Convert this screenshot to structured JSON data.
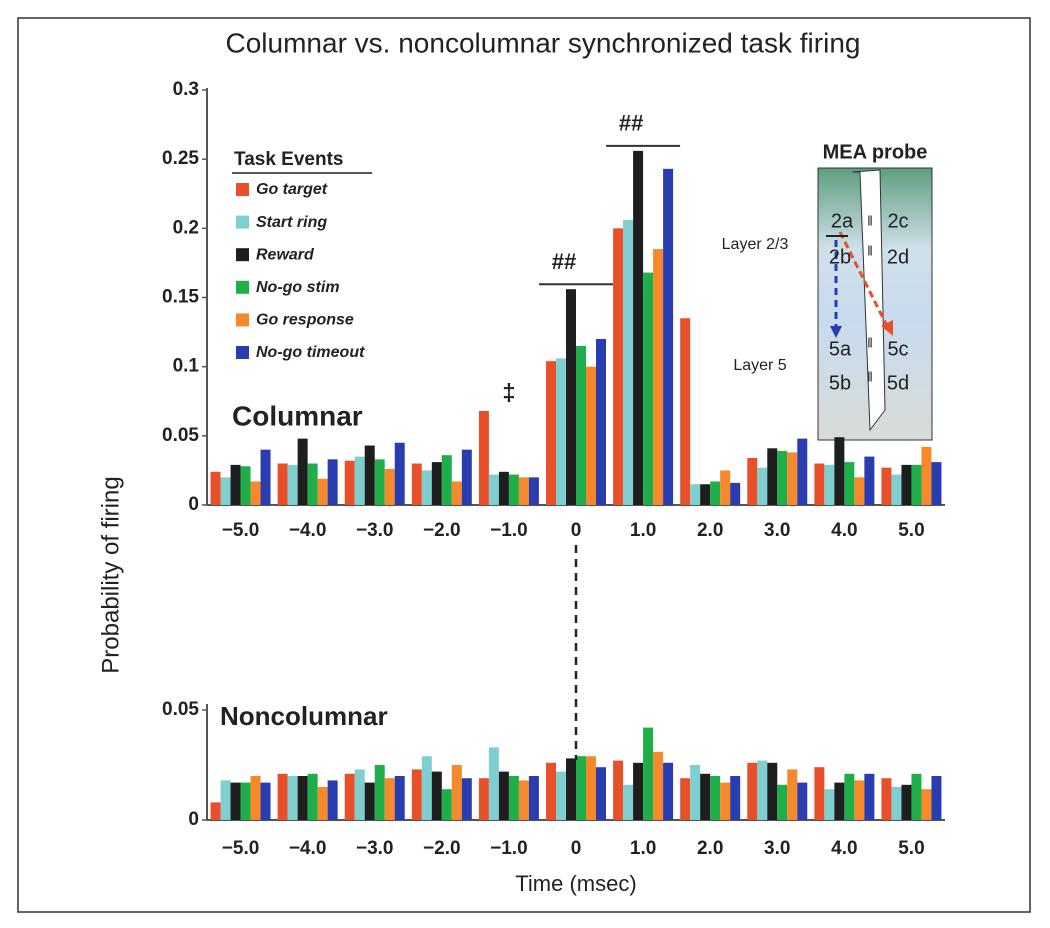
{
  "chart_data": [
    {
      "type": "bar",
      "title": "Columnar vs. noncolumnar synchronized task firing",
      "y_label": "Probability of firing",
      "label": "Columnar",
      "legend_title": "Task Events",
      "categories": [
        "−5.0",
        "−4.0",
        "−3.0",
        "−2.0",
        "−1.0",
        "0",
        "1.0",
        "2.0",
        "3.0",
        "4.0",
        "5.0"
      ],
      "ylim": [
        0,
        0.3
      ],
      "yticks": [
        0,
        0.05,
        0.1,
        0.15,
        0.2,
        0.25,
        0.3
      ],
      "series": [
        {
          "name": "Go target",
          "color": "#e8502a",
          "values": [
            0.024,
            0.03,
            0.032,
            0.03,
            0.068,
            0.104,
            0.2,
            0.135,
            0.034,
            0.03,
            0.027
          ]
        },
        {
          "name": "Start ring",
          "color": "#7fcfd0",
          "values": [
            0.02,
            0.029,
            0.035,
            0.025,
            0.022,
            0.106,
            0.206,
            0.015,
            0.027,
            0.029,
            0.022
          ]
        },
        {
          "name": "Reward",
          "color": "#1e1e1e",
          "values": [
            0.029,
            0.048,
            0.043,
            0.031,
            0.024,
            0.156,
            0.256,
            0.015,
            0.041,
            0.049,
            0.029
          ]
        },
        {
          "name": "No-go stim",
          "color": "#1fae4a",
          "values": [
            0.028,
            0.03,
            0.033,
            0.036,
            0.022,
            0.115,
            0.168,
            0.017,
            0.039,
            0.031,
            0.029
          ]
        },
        {
          "name": "Go response",
          "color": "#f5892b",
          "values": [
            0.017,
            0.019,
            0.026,
            0.017,
            0.02,
            0.1,
            0.185,
            0.025,
            0.038,
            0.02,
            0.042
          ]
        },
        {
          "name": "No-go timeout",
          "color": "#2a3db0",
          "values": [
            0.04,
            0.033,
            0.045,
            0.04,
            0.02,
            0.12,
            0.243,
            0.016,
            0.048,
            0.035,
            0.031
          ]
        }
      ],
      "annotations": [
        {
          "text": "‡",
          "at": "−1.0"
        },
        {
          "text": "##",
          "at": "0"
        },
        {
          "text": "##",
          "at": "1.0"
        }
      ],
      "inset": {
        "title": "MEA probe",
        "layers": [
          "Layer 2/3",
          "Layer 5"
        ],
        "sites": [
          "2a",
          "2c",
          "2b",
          "2d",
          "5a",
          "5c",
          "5b",
          "5d"
        ]
      }
    },
    {
      "type": "bar",
      "x_label": "Time (msec)",
      "label": "Noncolumnar",
      "categories": [
        "−5.0",
        "−4.0",
        "−3.0",
        "−2.0",
        "−1.0",
        "0",
        "1.0",
        "2.0",
        "3.0",
        "4.0",
        "5.0"
      ],
      "ylim": [
        0,
        0.05
      ],
      "yticks": [
        0,
        0.05
      ],
      "series": [
        {
          "color": "#e8502a",
          "values": [
            0.008,
            0.021,
            0.021,
            0.023,
            0.019,
            0.026,
            0.027,
            0.019,
            0.026,
            0.024,
            0.019
          ]
        },
        {
          "color": "#7fcfd0",
          "values": [
            0.018,
            0.02,
            0.023,
            0.029,
            0.033,
            0.022,
            0.016,
            0.025,
            0.027,
            0.014,
            0.015
          ]
        },
        {
          "color": "#1e1e1e",
          "values": [
            0.017,
            0.02,
            0.017,
            0.022,
            0.022,
            0.028,
            0.026,
            0.021,
            0.026,
            0.017,
            0.016
          ]
        },
        {
          "color": "#1fae4a",
          "values": [
            0.017,
            0.021,
            0.025,
            0.014,
            0.02,
            0.029,
            0.042,
            0.02,
            0.016,
            0.021,
            0.021
          ]
        },
        {
          "color": "#f5892b",
          "values": [
            0.02,
            0.015,
            0.019,
            0.025,
            0.018,
            0.029,
            0.031,
            0.017,
            0.023,
            0.018,
            0.014
          ]
        },
        {
          "color": "#2a3db0",
          "values": [
            0.017,
            0.018,
            0.02,
            0.019,
            0.02,
            0.024,
            0.026,
            0.02,
            0.017,
            0.021,
            0.02
          ]
        }
      ]
    }
  ]
}
